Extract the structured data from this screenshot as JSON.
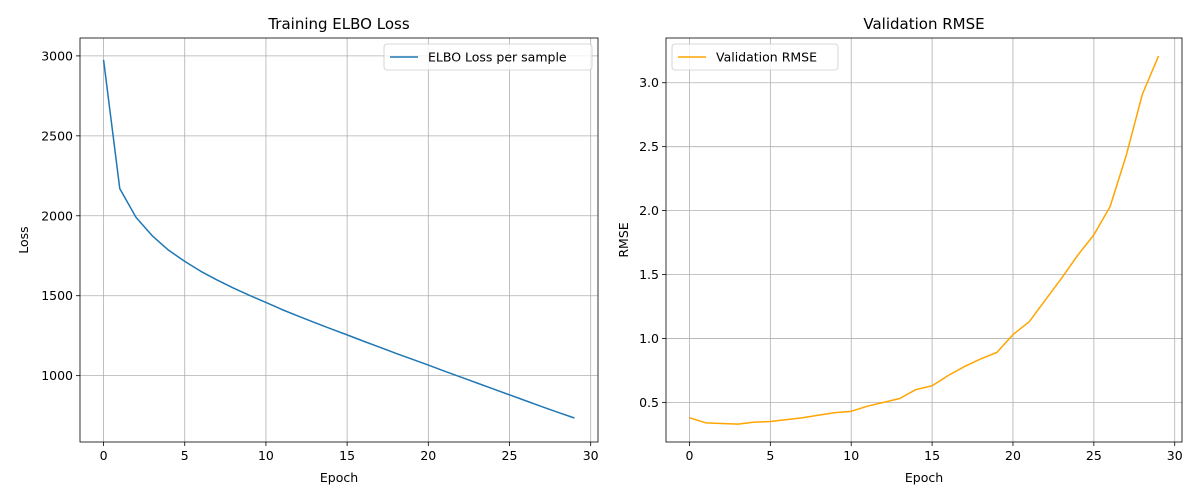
{
  "chart_data": [
    {
      "type": "line",
      "title": "Training ELBO Loss",
      "xlabel": "Epoch",
      "ylabel": "Loss",
      "xlim": [
        -1.45,
        30.45
      ],
      "ylim": [
        585,
        3112
      ],
      "xticks": [
        0,
        5,
        10,
        15,
        20,
        25,
        30
      ],
      "yticks": [
        1000,
        1500,
        2000,
        2500,
        3000
      ],
      "grid": true,
      "legend_position": "upper right",
      "series": [
        {
          "name": "ELBO Loss per sample",
          "color": "#1f77b4",
          "x": [
            0,
            1,
            2,
            3,
            4,
            5,
            6,
            7,
            8,
            9,
            10,
            11,
            12,
            13,
            14,
            15,
            16,
            17,
            18,
            19,
            20,
            21,
            22,
            23,
            24,
            25,
            26,
            27,
            28,
            29
          ],
          "y": [
            2975,
            2170,
            1990,
            1875,
            1785,
            1715,
            1652,
            1598,
            1548,
            1502,
            1458,
            1413,
            1372,
            1332,
            1293,
            1255,
            1216,
            1178,
            1140,
            1103,
            1066,
            1028,
            991,
            954,
            917,
            880,
            843,
            806,
            770,
            735
          ]
        }
      ]
    },
    {
      "type": "line",
      "title": "Validation RMSE",
      "xlabel": "Epoch",
      "ylabel": "RMSE",
      "xlim": [
        -1.45,
        30.45
      ],
      "ylim": [
        0.19,
        3.35
      ],
      "xticks": [
        0,
        5,
        10,
        15,
        20,
        25,
        30
      ],
      "yticks": [
        0.5,
        1.0,
        1.5,
        2.0,
        2.5,
        3.0
      ],
      "grid": true,
      "legend_position": "upper left",
      "series": [
        {
          "name": "Validation RMSE",
          "color": "#ffa500",
          "x": [
            0,
            1,
            2,
            3,
            4,
            5,
            6,
            7,
            8,
            9,
            10,
            11,
            12,
            13,
            14,
            15,
            16,
            17,
            18,
            19,
            20,
            21,
            22,
            23,
            24,
            25,
            26,
            27,
            28,
            29
          ],
          "y": [
            0.38,
            0.34,
            0.335,
            0.33,
            0.345,
            0.35,
            0.365,
            0.38,
            0.4,
            0.42,
            0.43,
            0.47,
            0.5,
            0.53,
            0.6,
            0.63,
            0.71,
            0.78,
            0.84,
            0.89,
            1.03,
            1.13,
            1.3,
            1.47,
            1.65,
            1.81,
            2.03,
            2.43,
            2.91,
            3.21
          ]
        }
      ]
    }
  ]
}
